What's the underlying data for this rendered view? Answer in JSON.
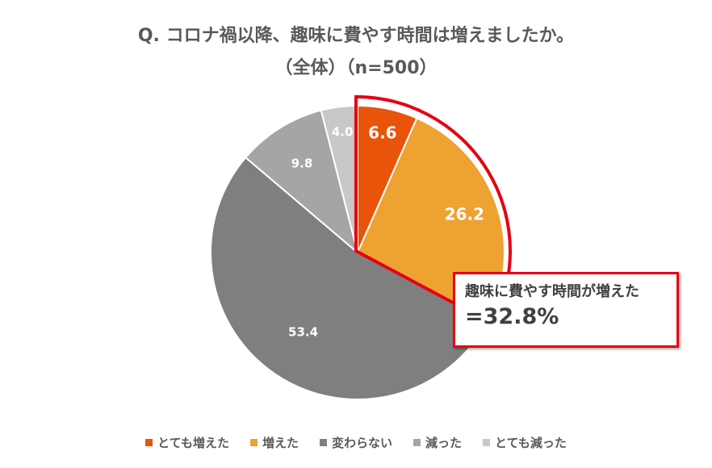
{
  "title_line1": "Q. コロナ禍以降、趣味に費やす時間は増えましたか。",
  "title_line2": "（全体）（n=500）",
  "callout": {
    "line1": "趣味に費やす時間が増えた",
    "line2": "=32.8%"
  },
  "colors": {
    "highlight": "#e60012",
    "label_dark": "#404040"
  },
  "chart_data": {
    "type": "pie",
    "title": "Q. コロナ禍以降、趣味に費やす時間は増えましたか。",
    "subtitle": "（全体）（n=500）",
    "categories": [
      "とても増えた",
      "増えた",
      "変わらない",
      "減った",
      "とても減った"
    ],
    "values": [
      6.6,
      26.2,
      53.4,
      9.8,
      4.0
    ],
    "labels": [
      "6.6",
      "26.2",
      "53.4",
      "9.8",
      "4.0"
    ],
    "colors": [
      "#e8540a",
      "#eea232",
      "#7f7f7f",
      "#a5a5a5",
      "#c8c8c8"
    ],
    "label_colors": [
      "#ffffff",
      "#ffffff",
      "#ffffff",
      "#ffffff",
      "#ffffff"
    ],
    "start": "12 o'clock",
    "direction": "clockwise",
    "legend_position": "bottom",
    "highlighted_slices": [
      "とても増えた",
      "増えた"
    ]
  }
}
